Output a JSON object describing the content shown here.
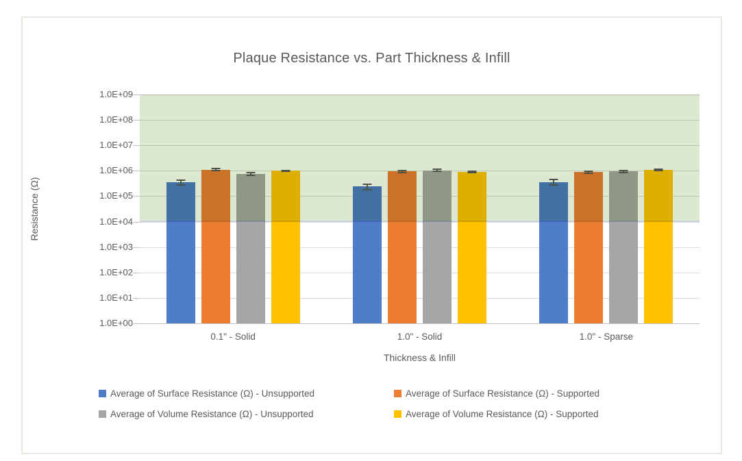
{
  "chart_data": {
    "type": "bar",
    "title": "Plaque Resistance vs. Part Thickness & Infill",
    "xlabel": "Thickness & Infill",
    "ylabel": "Resistance (Ω)",
    "y_scale": "log",
    "ylim": [
      1,
      1000000000
    ],
    "ytick_labels": [
      "1.0E+00",
      "1.0E+01",
      "1.0E+02",
      "1.0E+03",
      "1.0E+04",
      "1.0E+05",
      "1.0E+06",
      "1.0E+07",
      "1.0E+08",
      "1.0E+09"
    ],
    "categories": [
      "0.1\" - Solid",
      "1.0\" - Solid",
      "1.0\" - Sparse"
    ],
    "series": [
      {
        "name": "Average of Surface Resistance (Ω) - Unsupported",
        "color": "#4e7cc8",
        "values": [
          350000,
          240000,
          360000
        ],
        "errors": [
          80000,
          60000,
          90000
        ]
      },
      {
        "name": "Average of Surface Resistance (Ω) - Supported",
        "color": "#ed7d31",
        "values": [
          1100000,
          950000,
          880000
        ],
        "errors": [
          100000,
          80000,
          80000
        ]
      },
      {
        "name": "Average of Volume Resistance (Ω) - Unsupported",
        "color": "#a6a6a6",
        "values": [
          750000,
          1050000,
          950000
        ],
        "errors": [
          100000,
          80000,
          90000
        ]
      },
      {
        "name": "Average of Volume Resistance (Ω) - Supported",
        "color": "#ffc000",
        "values": [
          1000000,
          900000,
          1100000
        ],
        "errors": [
          50000,
          50000,
          60000
        ]
      }
    ],
    "highlight_band": {
      "from": 10000,
      "to": 1000000000,
      "color": "#dce9d0"
    },
    "grid": "horizontal",
    "legend_position": "bottom",
    "colors": {
      "text": "#595959",
      "gridline": "#d9d9d9",
      "axis_line": "#bfbfbf",
      "error_bar": "#595959",
      "card_border": "#eae7e1"
    }
  }
}
